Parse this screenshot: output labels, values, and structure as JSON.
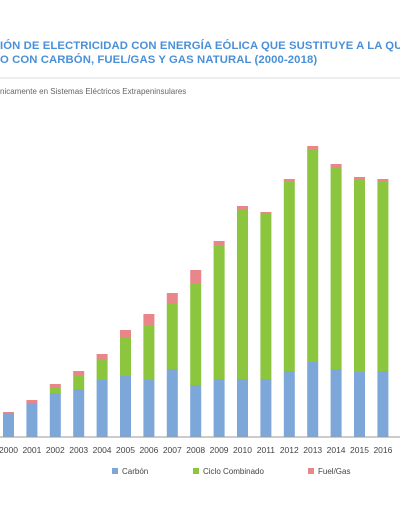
{
  "chart_data": {
    "type": "bar",
    "stacked": true,
    "title_lines": [
      "IÓN DE ELECTRICIDAD CON ENERGÍA EÓLICA QUE SUSTITUYE A LA QUE S",
      "O CON CARBÓN, FUEL/GAS Y GAS NATURAL (2000-2018)"
    ],
    "subtitle": "nicamente en Sistemas Eléctricos Extrapeninsulares",
    "categories": [
      "2000",
      "2001",
      "2002",
      "2003",
      "2004",
      "2005",
      "2006",
      "2007",
      "2008",
      "2009",
      "2010",
      "2011",
      "2012",
      "2013",
      "2014",
      "2015",
      "2016"
    ],
    "series": [
      {
        "name": "Carbón",
        "color": "#7da7d9",
        "values": [
          24,
          34,
          44,
          48,
          57,
          61,
          57,
          68,
          52,
          58,
          58,
          58,
          66,
          75,
          68,
          65,
          66
        ]
      },
      {
        "name": "Ciclo Combinado",
        "color": "#8cc63e",
        "values": [
          0,
          0,
          6,
          14,
          21,
          38,
          55,
          66,
          102,
          134,
          169,
          165,
          190,
          213,
          202,
          192,
          190
        ]
      },
      {
        "name": "Fuel/Gas",
        "color": "#e8868a",
        "values": [
          1,
          3,
          3,
          4,
          5,
          8,
          11,
          10,
          13,
          4,
          4,
          2,
          2,
          3,
          3,
          3,
          2
        ]
      }
    ],
    "ylim": [
      0,
      300
    ],
    "grid": false,
    "legend_position": "bottom"
  }
}
